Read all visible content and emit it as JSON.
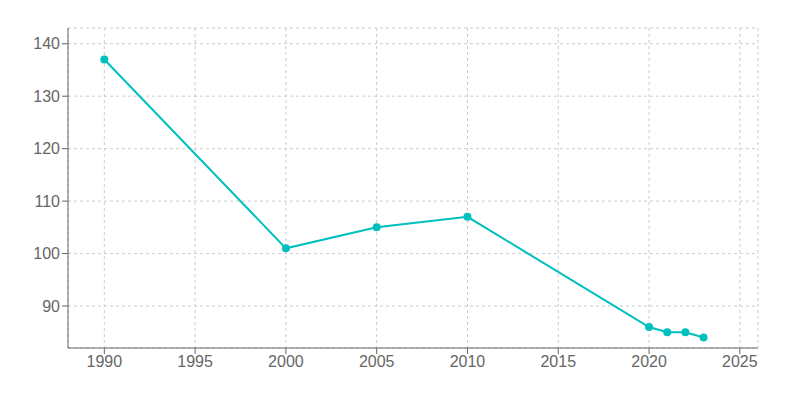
{
  "chart_data": {
    "type": "line",
    "x": [
      1990,
      2000,
      2005,
      2010,
      2020,
      2021,
      2022,
      2023
    ],
    "values": [
      137,
      101,
      105,
      107,
      86,
      85,
      85,
      84
    ],
    "color": "#00BFBF",
    "marker": "circle",
    "xlim": [
      1988,
      2026
    ],
    "ylim": [
      82,
      143
    ],
    "xticks": [
      1990,
      1995,
      2000,
      2005,
      2010,
      2015,
      2020,
      2025
    ],
    "yticks": [
      90,
      100,
      110,
      120,
      130,
      140
    ],
    "grid": true
  }
}
